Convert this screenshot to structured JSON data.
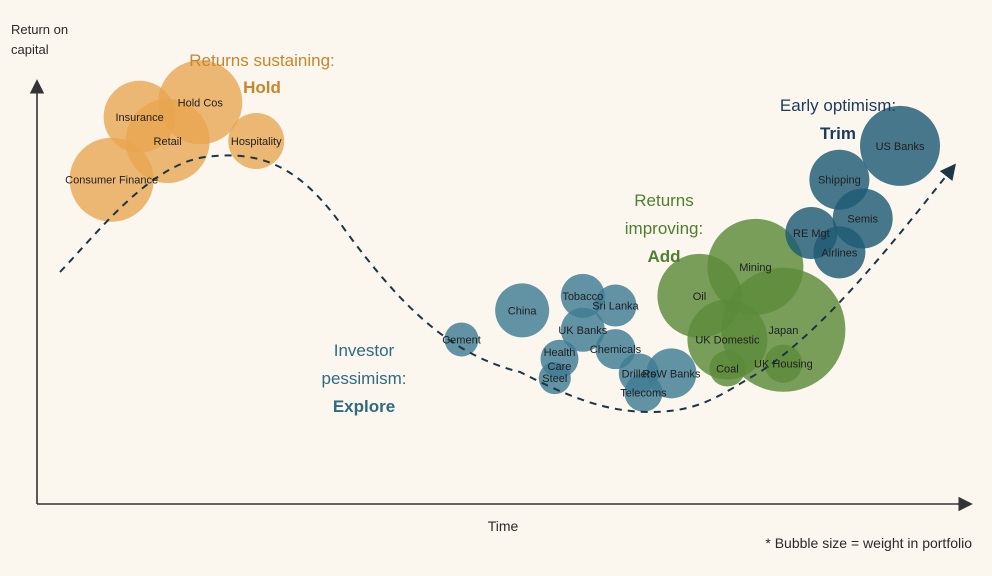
{
  "chart_data": {
    "type": "scatter",
    "title": "",
    "xlabel": "Time",
    "ylabel": "Return on capital",
    "note": "* Bubble size = weight in portfolio",
    "legend": "none",
    "grid": false,
    "colors": {
      "hold": "#e8a54f",
      "explore": "#3f7d94",
      "add": "#5b8a39",
      "trim": "#1f5a74",
      "curve": "#1c3648",
      "axis": "#333333"
    },
    "phases": [
      {
        "key": "hold",
        "line1": "Returns sustaining:",
        "line2": "",
        "action": "Hold",
        "color": "#c8862a"
      },
      {
        "key": "explore",
        "line1": "Investor",
        "line2": "pessimism:",
        "action": "Explore",
        "color": "#2f6c80"
      },
      {
        "key": "add",
        "line1": "Returns",
        "line2": "improving:",
        "action": "Add",
        "color": "#4f7f2f"
      },
      {
        "key": "trim",
        "line1": "Early optimism:",
        "line2": "",
        "action": "Trim",
        "color": "#1c3a5a"
      }
    ],
    "bubbles": [
      {
        "label": "Consumer Finance",
        "group": "hold",
        "x": 8,
        "y": 67,
        "size": 42
      },
      {
        "label": "Insurance",
        "group": "hold",
        "x": 11,
        "y": 80,
        "size": 36
      },
      {
        "label": "Hold Cos",
        "group": "hold",
        "x": 17.5,
        "y": 83,
        "size": 42
      },
      {
        "label": "Retail",
        "group": "hold",
        "x": 14,
        "y": 75,
        "size": 42
      },
      {
        "label": "Hospitality",
        "group": "hold",
        "x": 23.5,
        "y": 75,
        "size": 28
      },
      {
        "label": "Cement",
        "group": "explore",
        "x": 45.5,
        "y": 34,
        "size": 17
      },
      {
        "label": "China",
        "group": "explore",
        "x": 52,
        "y": 40,
        "size": 27
      },
      {
        "label": "Tobacco",
        "group": "explore",
        "x": 58.5,
        "y": 43,
        "size": 22
      },
      {
        "label": "Sri Lanka",
        "group": "explore",
        "x": 62,
        "y": 41,
        "size": 21
      },
      {
        "label": "UK Banks",
        "group": "explore",
        "x": 58.5,
        "y": 36,
        "size": 22
      },
      {
        "label": "Health Care",
        "group": "explore",
        "x": 56,
        "y": 30,
        "size": 19
      },
      {
        "label": "Chemicals",
        "group": "explore",
        "x": 62,
        "y": 32,
        "size": 20
      },
      {
        "label": "Steel",
        "group": "explore",
        "x": 55.5,
        "y": 26,
        "size": 16
      },
      {
        "label": "Drillers",
        "group": "explore",
        "x": 64.5,
        "y": 27,
        "size": 20
      },
      {
        "label": "RoW Banks",
        "group": "explore",
        "x": 68,
        "y": 27,
        "size": 25
      },
      {
        "label": "Telecoms",
        "group": "explore",
        "x": 65,
        "y": 23,
        "size": 19
      },
      {
        "label": "Oil",
        "group": "add",
        "x": 71,
        "y": 43,
        "size": 42
      },
      {
        "label": "Mining",
        "group": "add",
        "x": 77,
        "y": 49,
        "size": 48
      },
      {
        "label": "UK Domestic",
        "group": "add",
        "x": 74,
        "y": 34,
        "size": 40
      },
      {
        "label": "Japan",
        "group": "add",
        "x": 80,
        "y": 36,
        "size": 62
      },
      {
        "label": "Coal",
        "group": "add",
        "x": 74,
        "y": 28,
        "size": 18
      },
      {
        "label": "UK Housing",
        "group": "add",
        "x": 80,
        "y": 29,
        "size": 19
      },
      {
        "label": "US Banks",
        "group": "trim",
        "x": 92.5,
        "y": 74,
        "size": 40
      },
      {
        "label": "Shipping",
        "group": "trim",
        "x": 86,
        "y": 67,
        "size": 30
      },
      {
        "label": "Semis",
        "group": "trim",
        "x": 88.5,
        "y": 59,
        "size": 30
      },
      {
        "label": "RE Mgt",
        "group": "trim",
        "x": 83,
        "y": 56,
        "size": 26
      },
      {
        "label": "Airlines",
        "group": "trim",
        "x": 86,
        "y": 52,
        "size": 26
      }
    ]
  }
}
